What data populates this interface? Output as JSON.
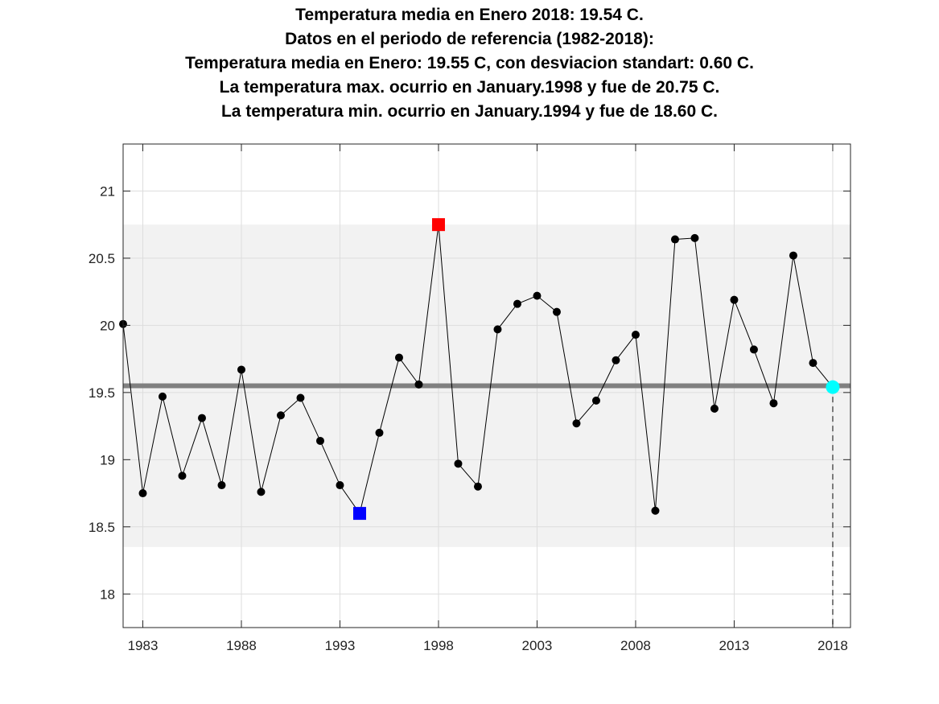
{
  "title_lines": [
    "Temperatura media en Enero 2018: 19.54 C.",
    "Datos en el periodo de referencia (1982-2018):",
    "Temperatura media en Enero: 19.55 C, con desviacion standart: 0.60 C.",
    "La temperatura max. ocurrio en January.1998 y fue de 20.75 C.",
    "La temperatura min. ocurrio en January.1994 y fue de 18.60 C."
  ],
  "colors": {
    "series": "#000000",
    "mean_line": "#808080",
    "band": "#f2f2f2",
    "max_marker": "#ff0000",
    "min_marker": "#0000ff",
    "current_marker": "#00ffff",
    "grid": "#dddddd"
  },
  "chart_data": {
    "type": "line",
    "xlim": [
      1982,
      2018.9
    ],
    "ylim": [
      17.75,
      21.35
    ],
    "xticks": [
      1983,
      1988,
      1993,
      1998,
      2003,
      2008,
      2013,
      2018
    ],
    "yticks": [
      18,
      18.5,
      19,
      19.5,
      20,
      20.5,
      21
    ],
    "ytick_labels": [
      "18",
      "18.5",
      "19",
      "19.5",
      "20",
      "20.5",
      "21"
    ],
    "grid": true,
    "mean": 19.55,
    "band": [
      18.35,
      20.75
    ],
    "series": [
      {
        "x": [
          1982,
          1983,
          1984,
          1985,
          1986,
          1987,
          1988,
          1989,
          1990,
          1991,
          1992,
          1993,
          1994,
          1995,
          1996,
          1997,
          1998,
          1999,
          2000,
          2001,
          2002,
          2003,
          2004,
          2005,
          2006,
          2007,
          2008,
          2009,
          2010,
          2011,
          2012,
          2013,
          2014,
          2015,
          2016,
          2017,
          2018
        ],
        "values": [
          20.01,
          18.75,
          19.47,
          18.88,
          19.31,
          18.81,
          19.67,
          18.76,
          19.33,
          19.46,
          19.14,
          18.81,
          18.6,
          19.2,
          19.76,
          19.56,
          20.75,
          18.97,
          18.8,
          19.97,
          20.16,
          20.22,
          20.1,
          19.27,
          19.44,
          19.74,
          19.93,
          18.62,
          20.64,
          20.65,
          19.38,
          20.19,
          19.82,
          19.42,
          20.52,
          19.72,
          19.54
        ]
      }
    ],
    "highlights": {
      "max": {
        "x": 1998,
        "y": 20.75
      },
      "min": {
        "x": 1994,
        "y": 18.6
      },
      "current": {
        "x": 2018,
        "y": 19.54
      }
    }
  }
}
